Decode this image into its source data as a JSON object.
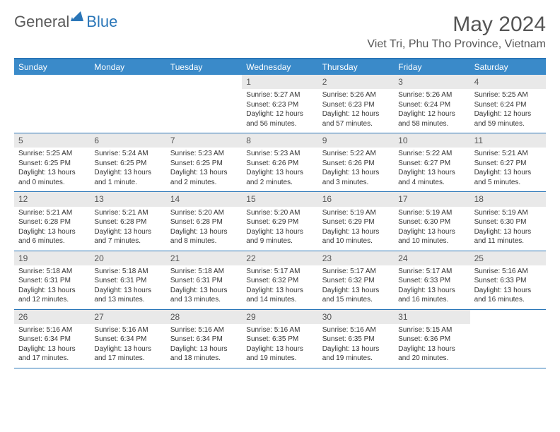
{
  "brand": {
    "part1": "General",
    "part2": "Blue"
  },
  "title": "May 2024",
  "location": "Viet Tri, Phu Tho Province, Vietnam",
  "colors": {
    "accent": "#3a8ac9",
    "accent_border": "#2a76b8",
    "datebar_bg": "#e9e9e9",
    "text": "#333333",
    "header_text": "#555555",
    "bg": "#ffffff"
  },
  "dayNames": [
    "Sunday",
    "Monday",
    "Tuesday",
    "Wednesday",
    "Thursday",
    "Friday",
    "Saturday"
  ],
  "weeks": [
    [
      {
        "date": "",
        "sunrise": "",
        "sunset": "",
        "daylight": ""
      },
      {
        "date": "",
        "sunrise": "",
        "sunset": "",
        "daylight": ""
      },
      {
        "date": "",
        "sunrise": "",
        "sunset": "",
        "daylight": ""
      },
      {
        "date": "1",
        "sunrise": "Sunrise: 5:27 AM",
        "sunset": "Sunset: 6:23 PM",
        "daylight": "Daylight: 12 hours and 56 minutes."
      },
      {
        "date": "2",
        "sunrise": "Sunrise: 5:26 AM",
        "sunset": "Sunset: 6:23 PM",
        "daylight": "Daylight: 12 hours and 57 minutes."
      },
      {
        "date": "3",
        "sunrise": "Sunrise: 5:26 AM",
        "sunset": "Sunset: 6:24 PM",
        "daylight": "Daylight: 12 hours and 58 minutes."
      },
      {
        "date": "4",
        "sunrise": "Sunrise: 5:25 AM",
        "sunset": "Sunset: 6:24 PM",
        "daylight": "Daylight: 12 hours and 59 minutes."
      }
    ],
    [
      {
        "date": "5",
        "sunrise": "Sunrise: 5:25 AM",
        "sunset": "Sunset: 6:25 PM",
        "daylight": "Daylight: 13 hours and 0 minutes."
      },
      {
        "date": "6",
        "sunrise": "Sunrise: 5:24 AM",
        "sunset": "Sunset: 6:25 PM",
        "daylight": "Daylight: 13 hours and 1 minute."
      },
      {
        "date": "7",
        "sunrise": "Sunrise: 5:23 AM",
        "sunset": "Sunset: 6:25 PM",
        "daylight": "Daylight: 13 hours and 2 minutes."
      },
      {
        "date": "8",
        "sunrise": "Sunrise: 5:23 AM",
        "sunset": "Sunset: 6:26 PM",
        "daylight": "Daylight: 13 hours and 2 minutes."
      },
      {
        "date": "9",
        "sunrise": "Sunrise: 5:22 AM",
        "sunset": "Sunset: 6:26 PM",
        "daylight": "Daylight: 13 hours and 3 minutes."
      },
      {
        "date": "10",
        "sunrise": "Sunrise: 5:22 AM",
        "sunset": "Sunset: 6:27 PM",
        "daylight": "Daylight: 13 hours and 4 minutes."
      },
      {
        "date": "11",
        "sunrise": "Sunrise: 5:21 AM",
        "sunset": "Sunset: 6:27 PM",
        "daylight": "Daylight: 13 hours and 5 minutes."
      }
    ],
    [
      {
        "date": "12",
        "sunrise": "Sunrise: 5:21 AM",
        "sunset": "Sunset: 6:28 PM",
        "daylight": "Daylight: 13 hours and 6 minutes."
      },
      {
        "date": "13",
        "sunrise": "Sunrise: 5:21 AM",
        "sunset": "Sunset: 6:28 PM",
        "daylight": "Daylight: 13 hours and 7 minutes."
      },
      {
        "date": "14",
        "sunrise": "Sunrise: 5:20 AM",
        "sunset": "Sunset: 6:28 PM",
        "daylight": "Daylight: 13 hours and 8 minutes."
      },
      {
        "date": "15",
        "sunrise": "Sunrise: 5:20 AM",
        "sunset": "Sunset: 6:29 PM",
        "daylight": "Daylight: 13 hours and 9 minutes."
      },
      {
        "date": "16",
        "sunrise": "Sunrise: 5:19 AM",
        "sunset": "Sunset: 6:29 PM",
        "daylight": "Daylight: 13 hours and 10 minutes."
      },
      {
        "date": "17",
        "sunrise": "Sunrise: 5:19 AM",
        "sunset": "Sunset: 6:30 PM",
        "daylight": "Daylight: 13 hours and 10 minutes."
      },
      {
        "date": "18",
        "sunrise": "Sunrise: 5:19 AM",
        "sunset": "Sunset: 6:30 PM",
        "daylight": "Daylight: 13 hours and 11 minutes."
      }
    ],
    [
      {
        "date": "19",
        "sunrise": "Sunrise: 5:18 AM",
        "sunset": "Sunset: 6:31 PM",
        "daylight": "Daylight: 13 hours and 12 minutes."
      },
      {
        "date": "20",
        "sunrise": "Sunrise: 5:18 AM",
        "sunset": "Sunset: 6:31 PM",
        "daylight": "Daylight: 13 hours and 13 minutes."
      },
      {
        "date": "21",
        "sunrise": "Sunrise: 5:18 AM",
        "sunset": "Sunset: 6:31 PM",
        "daylight": "Daylight: 13 hours and 13 minutes."
      },
      {
        "date": "22",
        "sunrise": "Sunrise: 5:17 AM",
        "sunset": "Sunset: 6:32 PM",
        "daylight": "Daylight: 13 hours and 14 minutes."
      },
      {
        "date": "23",
        "sunrise": "Sunrise: 5:17 AM",
        "sunset": "Sunset: 6:32 PM",
        "daylight": "Daylight: 13 hours and 15 minutes."
      },
      {
        "date": "24",
        "sunrise": "Sunrise: 5:17 AM",
        "sunset": "Sunset: 6:33 PM",
        "daylight": "Daylight: 13 hours and 16 minutes."
      },
      {
        "date": "25",
        "sunrise": "Sunrise: 5:16 AM",
        "sunset": "Sunset: 6:33 PM",
        "daylight": "Daylight: 13 hours and 16 minutes."
      }
    ],
    [
      {
        "date": "26",
        "sunrise": "Sunrise: 5:16 AM",
        "sunset": "Sunset: 6:34 PM",
        "daylight": "Daylight: 13 hours and 17 minutes."
      },
      {
        "date": "27",
        "sunrise": "Sunrise: 5:16 AM",
        "sunset": "Sunset: 6:34 PM",
        "daylight": "Daylight: 13 hours and 17 minutes."
      },
      {
        "date": "28",
        "sunrise": "Sunrise: 5:16 AM",
        "sunset": "Sunset: 6:34 PM",
        "daylight": "Daylight: 13 hours and 18 minutes."
      },
      {
        "date": "29",
        "sunrise": "Sunrise: 5:16 AM",
        "sunset": "Sunset: 6:35 PM",
        "daylight": "Daylight: 13 hours and 19 minutes."
      },
      {
        "date": "30",
        "sunrise": "Sunrise: 5:16 AM",
        "sunset": "Sunset: 6:35 PM",
        "daylight": "Daylight: 13 hours and 19 minutes."
      },
      {
        "date": "31",
        "sunrise": "Sunrise: 5:15 AM",
        "sunset": "Sunset: 6:36 PM",
        "daylight": "Daylight: 13 hours and 20 minutes."
      },
      {
        "date": "",
        "sunrise": "",
        "sunset": "",
        "daylight": ""
      }
    ]
  ]
}
